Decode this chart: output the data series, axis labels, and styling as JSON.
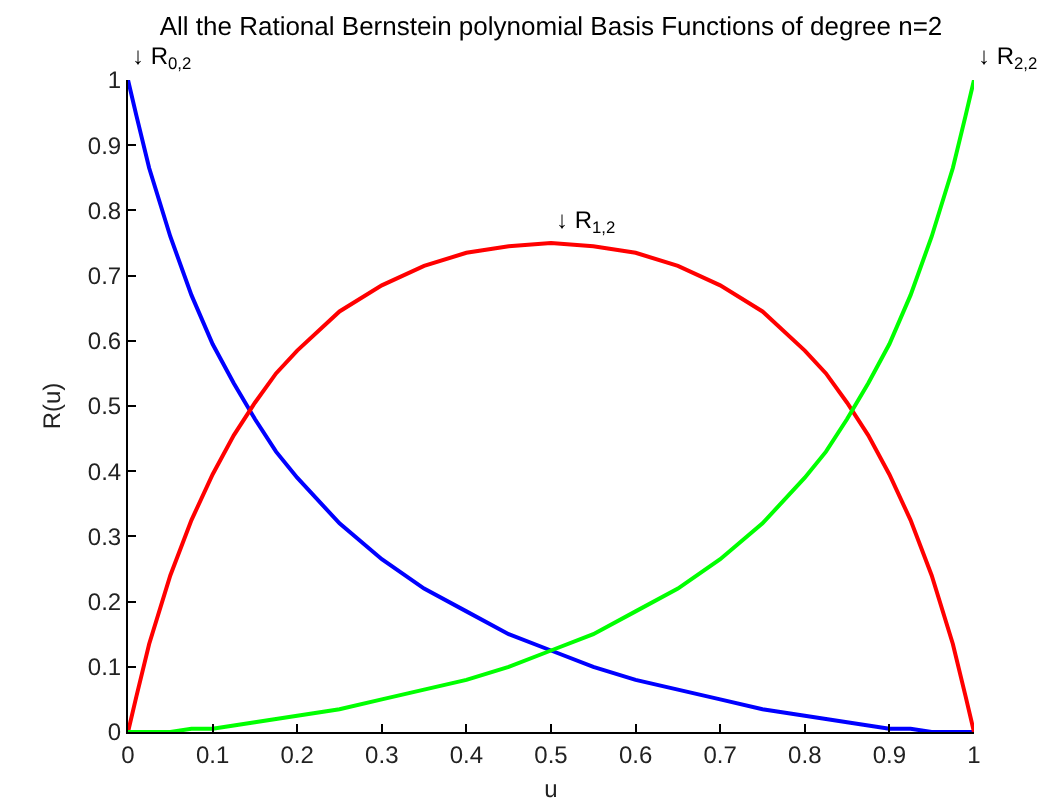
{
  "chart_data": {
    "type": "line",
    "title": "All the Rational Bernstein polynomial Basis Functions of degree n=2",
    "xlabel": "u",
    "ylabel": "R(u)",
    "x": [
      0,
      0.01,
      0.025,
      0.05,
      0.075,
      0.1,
      0.125,
      0.15,
      0.175,
      0.2,
      0.25,
      0.3,
      0.35,
      0.4,
      0.45,
      0.5,
      0.55,
      0.6,
      0.65,
      0.7,
      0.75,
      0.8,
      0.825,
      0.85,
      0.875,
      0.9,
      0.925,
      0.95,
      0.975,
      0.99,
      1
    ],
    "series": [
      {
        "color": "#0000ff",
        "values": [
          1,
          0.945,
          0.865,
          0.76,
          0.67,
          0.595,
          0.535,
          0.48,
          0.43,
          0.39,
          0.32,
          0.265,
          0.22,
          0.185,
          0.15,
          0.125,
          0.1,
          0.08,
          0.065,
          0.05,
          0.035,
          0.025,
          0.02,
          0.015,
          0.01,
          0.005,
          0.005,
          0,
          0,
          0,
          0
        ]
      },
      {
        "color": "#ff0000",
        "values": [
          0,
          0.055,
          0.135,
          0.24,
          0.325,
          0.395,
          0.455,
          0.505,
          0.55,
          0.585,
          0.645,
          0.685,
          0.715,
          0.735,
          0.745,
          0.75,
          0.745,
          0.735,
          0.715,
          0.685,
          0.645,
          0.585,
          0.55,
          0.505,
          0.455,
          0.395,
          0.325,
          0.24,
          0.135,
          0.055,
          0
        ]
      },
      {
        "color": "#00ff00",
        "values": [
          0,
          0,
          0,
          0,
          0.005,
          0.005,
          0.01,
          0.015,
          0.02,
          0.025,
          0.035,
          0.05,
          0.065,
          0.08,
          0.1,
          0.125,
          0.15,
          0.185,
          0.22,
          0.265,
          0.32,
          0.39,
          0.43,
          0.48,
          0.535,
          0.595,
          0.67,
          0.76,
          0.865,
          0.945,
          1
        ]
      }
    ],
    "annotations": [
      {
        "text": "↓ R$_{0,2}$",
        "x": 0,
        "y": 1
      },
      {
        "text": "↓ R$_{1,2}$",
        "x": 0.5,
        "y": 0.75
      },
      {
        "text": "↓ R$_{2,2}$",
        "x": 1,
        "y": 1
      }
    ],
    "xlim": [
      0,
      1
    ],
    "xticks": [
      0,
      0.1,
      0.2,
      0.3,
      0.4,
      0.5,
      0.6,
      0.7,
      0.8,
      0.9,
      1
    ],
    "ylim": [
      0,
      1
    ],
    "yticks": [
      0,
      0.1,
      0.2,
      0.3,
      0.4,
      0.5,
      0.6,
      0.7,
      0.8,
      0.9,
      1
    ],
    "grid": false,
    "marker": "none",
    "line_style": "solid"
  }
}
